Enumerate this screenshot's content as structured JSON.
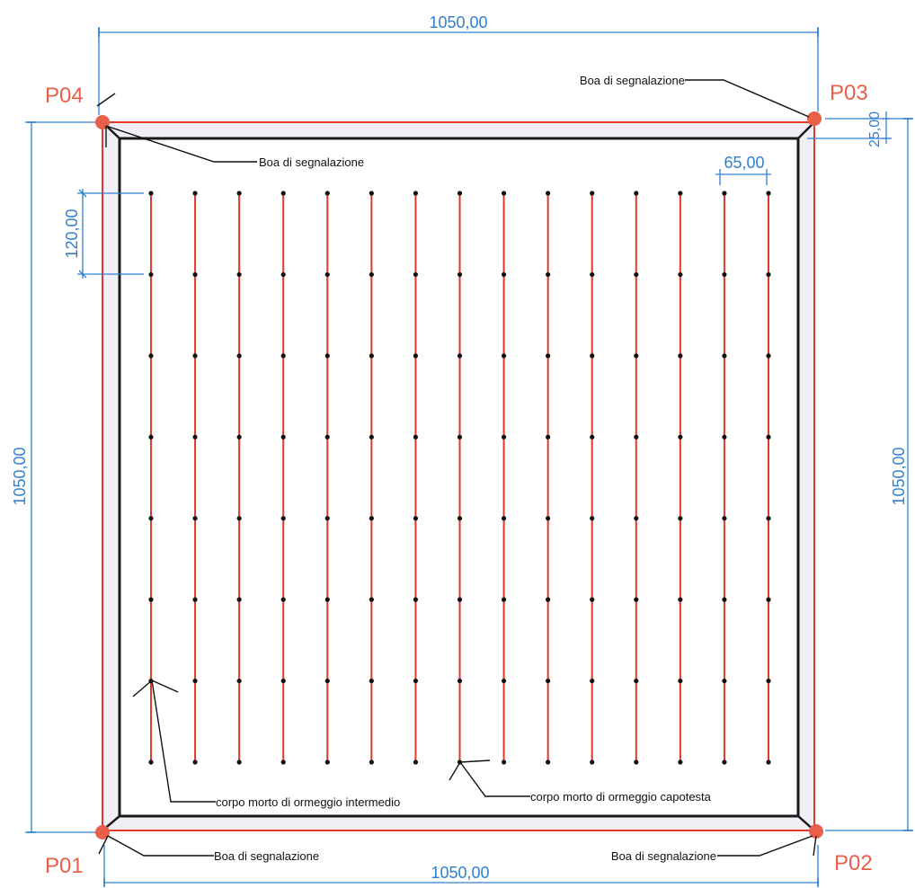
{
  "corners": {
    "p01": "P01",
    "p02": "P02",
    "p03": "P03",
    "p04": "P04"
  },
  "dimensions": {
    "top_width": "1050,00",
    "bottom_width": "1050,00",
    "left_height": "1050,00",
    "right_height": "1050,00",
    "row_spacing": "120,00",
    "line_spacing": "65,00",
    "border_offset": "25,00"
  },
  "callouts": {
    "buoy_p03": "Boa di segnalazione",
    "buoy_p04": "Boa di segnalazione",
    "buoy_p01": "Boa di segnalazione",
    "buoy_p02": "Boa di segnalazione",
    "intermediate_mooring": "corpo morto di ormeggio intermedio",
    "head_mooring": "corpo morto di ormeggio capotesta"
  },
  "grid": {
    "lines": 15,
    "points_per_line": 8
  },
  "colors": {
    "dimension": "#2f7fd0",
    "corner_label": "#e8604a",
    "buoy": "#e8604a",
    "outer_boundary": "#e03a2a",
    "inner_boundary": "#1a1a1a",
    "longline": "#e03a2a",
    "anchor_point": "#111111",
    "band_fill": "#f1eef6"
  }
}
